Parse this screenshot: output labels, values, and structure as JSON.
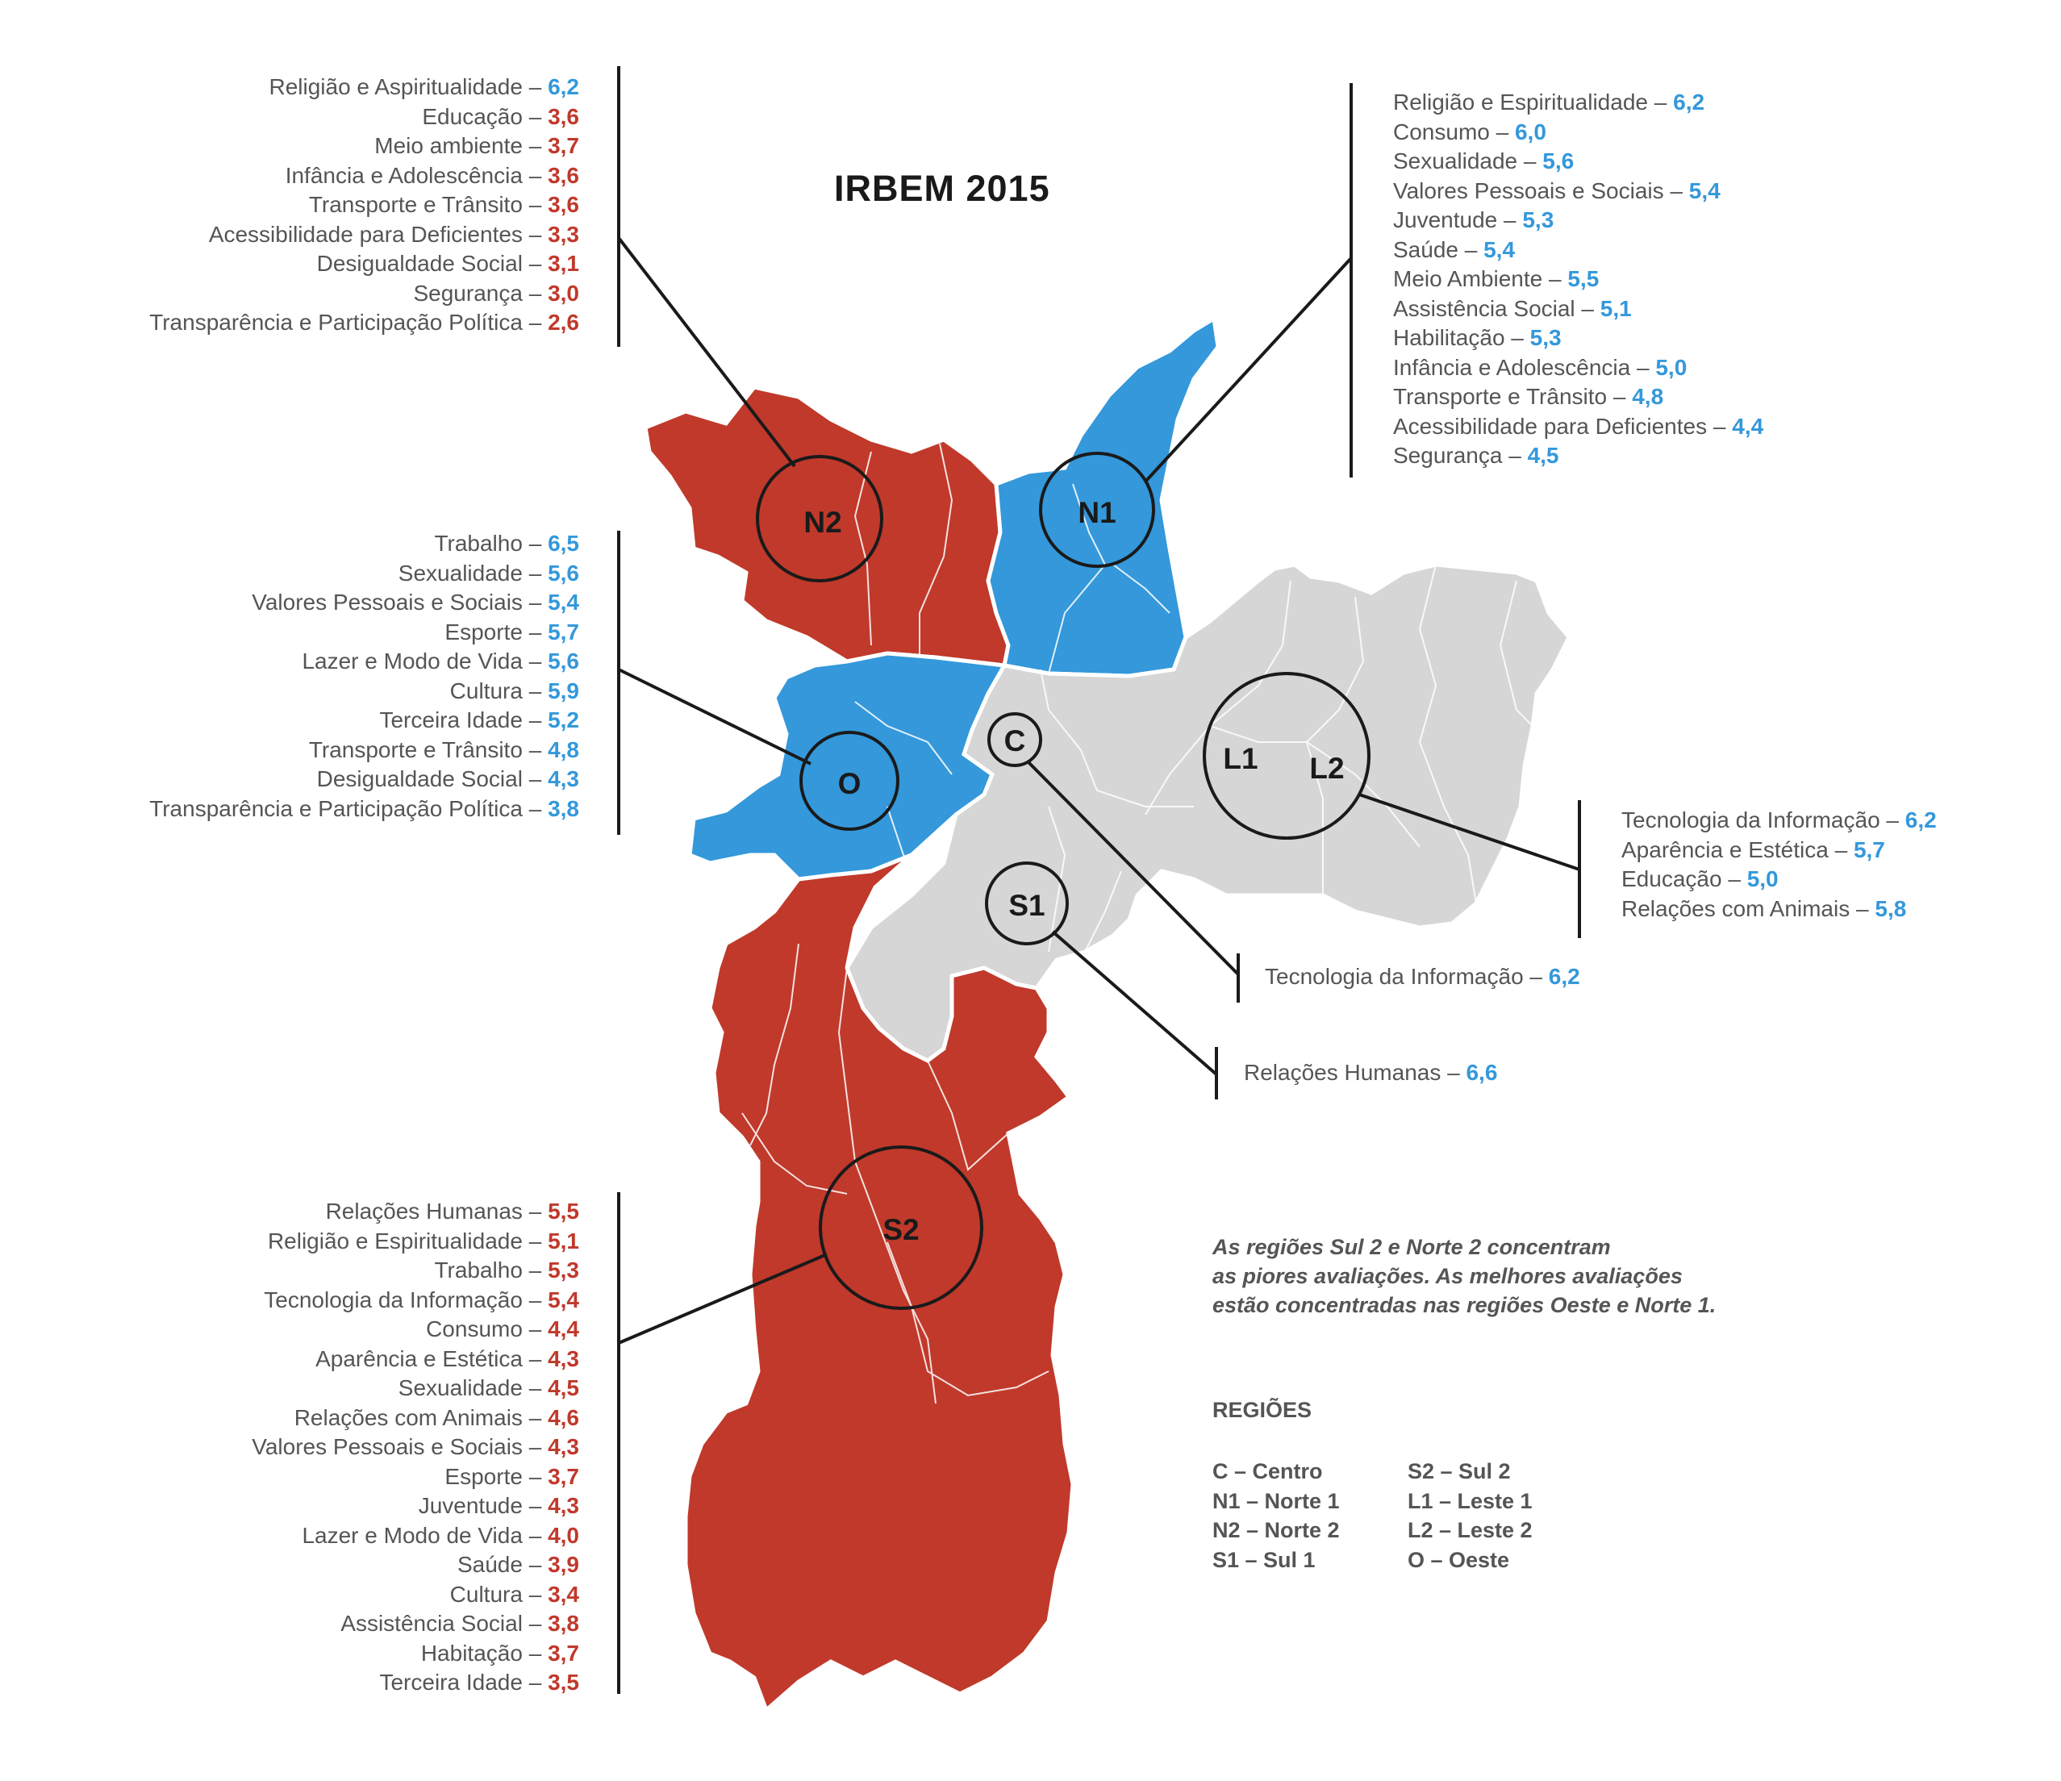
{
  "title": "IRBEM 2015",
  "colors": {
    "red": "#c0392b",
    "blue": "#3498db",
    "gray": "#d6d6d6",
    "text": "#555555",
    "line": "#1a1a1a"
  },
  "regions": {
    "n2": {
      "label": "N2",
      "status": "worst"
    },
    "n1": {
      "label": "N1",
      "status": "best"
    },
    "o": {
      "label": "O",
      "status": "best"
    },
    "c": {
      "label": "C",
      "status": "neutral"
    },
    "l1": {
      "label": "L1",
      "status": "neutral"
    },
    "l2": {
      "label": "L2",
      "status": "neutral"
    },
    "s1": {
      "label": "S1",
      "status": "neutral"
    },
    "s2": {
      "label": "S2",
      "status": "worst"
    }
  },
  "lists": {
    "n2": [
      {
        "name": "Religião e Aspiritualidade",
        "value": "6,2",
        "color": "blue"
      },
      {
        "name": "Educação",
        "value": "3,6",
        "color": "red"
      },
      {
        "name": "Meio ambiente",
        "value": "3,7",
        "color": "red"
      },
      {
        "name": "Infância e Adolescência",
        "value": "3,6",
        "color": "red"
      },
      {
        "name": "Transporte e Trânsito",
        "value": "3,6",
        "color": "red"
      },
      {
        "name": "Acessibilidade para Deficientes",
        "value": "3,3",
        "color": "red"
      },
      {
        "name": "Desigualdade Social",
        "value": "3,1",
        "color": "red"
      },
      {
        "name": "Segurança",
        "value": "3,0",
        "color": "red"
      },
      {
        "name": "Transparência e Participação Política",
        "value": "2,6",
        "color": "red"
      }
    ],
    "n1": [
      {
        "name": "Religião e Espiritualidade",
        "value": "6,2",
        "color": "blue"
      },
      {
        "name": "Consumo",
        "value": "6,0",
        "color": "blue"
      },
      {
        "name": "Sexualidade",
        "value": "5,6",
        "color": "blue"
      },
      {
        "name": "Valores Pessoais e Sociais",
        "value": "5,4",
        "color": "blue"
      },
      {
        "name": "Juventude",
        "value": "5,3",
        "color": "blue"
      },
      {
        "name": "Saúde",
        "value": "5,4",
        "color": "blue"
      },
      {
        "name": "Meio Ambiente",
        "value": "5,5",
        "color": "blue"
      },
      {
        "name": "Assistência Social",
        "value": "5,1",
        "color": "blue"
      },
      {
        "name": "Habilitação",
        "value": "5,3",
        "color": "blue"
      },
      {
        "name": "Infância e Adolescência",
        "value": "5,0",
        "color": "blue"
      },
      {
        "name": "Transporte e Trânsito",
        "value": "4,8",
        "color": "blue"
      },
      {
        "name": "Acessibilidade para Deficientes",
        "value": "4,4",
        "color": "blue"
      },
      {
        "name": "Segurança",
        "value": "4,5",
        "color": "blue"
      }
    ],
    "o": [
      {
        "name": "Trabalho",
        "value": "6,5",
        "color": "blue"
      },
      {
        "name": "Sexualidade",
        "value": "5,6",
        "color": "blue"
      },
      {
        "name": "Valores Pessoais e Sociais",
        "value": "5,4",
        "color": "blue"
      },
      {
        "name": "Esporte",
        "value": "5,7",
        "color": "blue"
      },
      {
        "name": "Lazer e Modo de Vida",
        "value": "5,6",
        "color": "blue"
      },
      {
        "name": "Cultura",
        "value": "5,9",
        "color": "blue"
      },
      {
        "name": "Terceira Idade",
        "value": "5,2",
        "color": "blue"
      },
      {
        "name": "Transporte e Trânsito",
        "value": "4,8",
        "color": "blue"
      },
      {
        "name": "Desigualdade Social",
        "value": "4,3",
        "color": "blue"
      },
      {
        "name": "Transparência e Participação Política",
        "value": "3,8",
        "color": "blue"
      }
    ],
    "l": [
      {
        "name": "Tecnologia da Informação",
        "value": "6,2",
        "color": "blue"
      },
      {
        "name": "Aparência e Estética",
        "value": "5,7",
        "color": "blue"
      },
      {
        "name": "Educação",
        "value": "5,0",
        "color": "blue"
      },
      {
        "name": "Relações com Animais",
        "value": "5,8",
        "color": "blue"
      }
    ],
    "c": [
      {
        "name": "Tecnologia da Informação",
        "value": "6,2",
        "color": "blue"
      }
    ],
    "s1": [
      {
        "name": "Relações Humanas",
        "value": "6,6",
        "color": "blue"
      }
    ],
    "s2": [
      {
        "name": "Relações Humanas",
        "value": "5,5",
        "color": "red"
      },
      {
        "name": "Religião e Espiritualidade",
        "value": "5,1",
        "color": "red"
      },
      {
        "name": "Trabalho",
        "value": "5,3",
        "color": "red"
      },
      {
        "name": "Tecnologia da Informação",
        "value": "5,4",
        "color": "red"
      },
      {
        "name": "Consumo",
        "value": "4,4",
        "color": "red"
      },
      {
        "name": "Aparência e Estética",
        "value": "4,3",
        "color": "red"
      },
      {
        "name": "Sexualidade",
        "value": "4,5",
        "color": "red"
      },
      {
        "name": "Relações com Animais",
        "value": "4,6",
        "color": "red"
      },
      {
        "name": "Valores Pessoais e Sociais",
        "value": "4,3",
        "color": "red"
      },
      {
        "name": "Esporte",
        "value": "3,7",
        "color": "red"
      },
      {
        "name": "Juventude",
        "value": "4,3",
        "color": "red"
      },
      {
        "name": "Lazer e Modo de Vida",
        "value": "4,0",
        "color": "red"
      },
      {
        "name": "Saúde",
        "value": "3,9",
        "color": "red"
      },
      {
        "name": "Cultura",
        "value": "3,4",
        "color": "red"
      },
      {
        "name": "Assistência Social",
        "value": "3,8",
        "color": "red"
      },
      {
        "name": "Habitação",
        "value": "3,7",
        "color": "red"
      },
      {
        "name": "Terceira Idade",
        "value": "3,5",
        "color": "red"
      }
    ]
  },
  "note": {
    "line1": "As regiões Sul 2  e Norte 2 concentram",
    "line2": "as piores avaliações. As melhores avaliações",
    "line3": "estão concentradas nas regiões Oeste e Norte 1."
  },
  "legend": {
    "title": "REGIÕES",
    "col1": [
      "C – Centro",
      "N1 – Norte 1",
      "N2 – Norte 2",
      "S1 – Sul 1"
    ],
    "col2": [
      "S2 – Sul 2",
      "L1 – Leste 1",
      "L2 – Leste 2",
      "O – Oeste"
    ]
  }
}
